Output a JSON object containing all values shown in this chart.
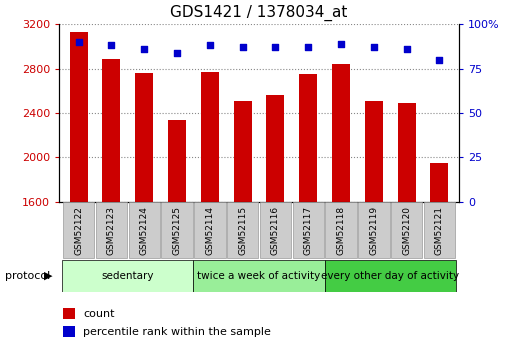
{
  "title": "GDS1421 / 1378034_at",
  "samples": [
    "GSM52122",
    "GSM52123",
    "GSM52124",
    "GSM52125",
    "GSM52114",
    "GSM52115",
    "GSM52116",
    "GSM52117",
    "GSM52118",
    "GSM52119",
    "GSM52120",
    "GSM52121"
  ],
  "counts": [
    3130,
    2890,
    2760,
    2340,
    2770,
    2510,
    2560,
    2750,
    2840,
    2510,
    2490,
    1950
  ],
  "percentiles": [
    90,
    88,
    86,
    84,
    88,
    87,
    87,
    87,
    89,
    87,
    86,
    80
  ],
  "ylim_left": [
    1600,
    3200
  ],
  "ylim_right": [
    0,
    100
  ],
  "yticks_left": [
    1600,
    2000,
    2400,
    2800,
    3200
  ],
  "yticks_right": [
    0,
    25,
    50,
    75,
    100
  ],
  "bar_color": "#cc0000",
  "dot_color": "#0000cc",
  "groups": [
    {
      "label": "sedentary",
      "start": 0,
      "end": 4,
      "color": "#ccffcc"
    },
    {
      "label": "twice a week of activity",
      "start": 4,
      "end": 8,
      "color": "#99ee99"
    },
    {
      "label": "every other day of activity",
      "start": 8,
      "end": 12,
      "color": "#44cc44"
    }
  ],
  "protocol_label": "protocol",
  "legend_count_label": "count",
  "legend_pct_label": "percentile rank within the sample",
  "bg_color": "#ffffff",
  "tick_label_color_left": "#cc0000",
  "tick_label_color_right": "#0000cc",
  "grid_color": "#888888",
  "bar_width": 0.55,
  "sample_box_color": "#cccccc",
  "sample_box_edge": "#999999"
}
